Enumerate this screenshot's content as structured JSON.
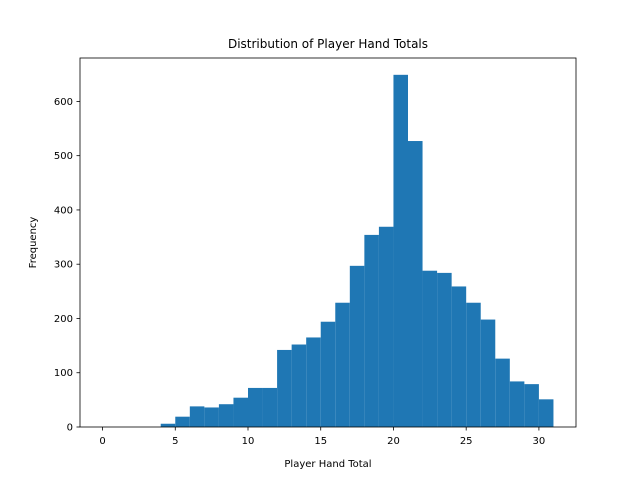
{
  "chart_data": {
    "type": "bar",
    "title": "Distribution of Player Hand Totals",
    "xlabel": "Player Hand Total",
    "ylabel": "Frequency",
    "xlim": [
      -1.55,
      32.55
    ],
    "ylim": [
      0,
      680
    ],
    "xticks": [
      0,
      5,
      10,
      15,
      20,
      25,
      30
    ],
    "yticks": [
      0,
      100,
      200,
      300,
      400,
      500,
      600
    ],
    "grid": false,
    "bar_color": "#1f77b4",
    "bins": [
      {
        "x0": 0,
        "x1": 1,
        "value": 0
      },
      {
        "x0": 1,
        "x1": 2,
        "value": 0
      },
      {
        "x0": 2,
        "x1": 3,
        "value": 0
      },
      {
        "x0": 3,
        "x1": 4,
        "value": 0
      },
      {
        "x0": 4,
        "x1": 5,
        "value": 6
      },
      {
        "x0": 5,
        "x1": 6,
        "value": 19
      },
      {
        "x0": 6,
        "x1": 7,
        "value": 38
      },
      {
        "x0": 7,
        "x1": 8,
        "value": 36
      },
      {
        "x0": 8,
        "x1": 9,
        "value": 42
      },
      {
        "x0": 9,
        "x1": 10,
        "value": 54
      },
      {
        "x0": 10,
        "x1": 11,
        "value": 72
      },
      {
        "x0": 11,
        "x1": 12,
        "value": 72
      },
      {
        "x0": 12,
        "x1": 13,
        "value": 142
      },
      {
        "x0": 13,
        "x1": 14,
        "value": 152
      },
      {
        "x0": 14,
        "x1": 15,
        "value": 165
      },
      {
        "x0": 15,
        "x1": 16,
        "value": 194
      },
      {
        "x0": 16,
        "x1": 17,
        "value": 229
      },
      {
        "x0": 17,
        "x1": 18,
        "value": 297
      },
      {
        "x0": 18,
        "x1": 19,
        "value": 354
      },
      {
        "x0": 19,
        "x1": 20,
        "value": 369
      },
      {
        "x0": 20,
        "x1": 21,
        "value": 649
      },
      {
        "x0": 21,
        "x1": 22,
        "value": 527
      },
      {
        "x0": 22,
        "x1": 23,
        "value": 288
      },
      {
        "x0": 23,
        "x1": 24,
        "value": 284
      },
      {
        "x0": 24,
        "x1": 25,
        "value": 259
      },
      {
        "x0": 25,
        "x1": 26,
        "value": 229
      },
      {
        "x0": 26,
        "x1": 27,
        "value": 198
      },
      {
        "x0": 27,
        "x1": 28,
        "value": 126
      },
      {
        "x0": 28,
        "x1": 29,
        "value": 84
      },
      {
        "x0": 29,
        "x1": 30,
        "value": 79
      },
      {
        "x0": 30,
        "x1": 31,
        "value": 51
      }
    ]
  }
}
